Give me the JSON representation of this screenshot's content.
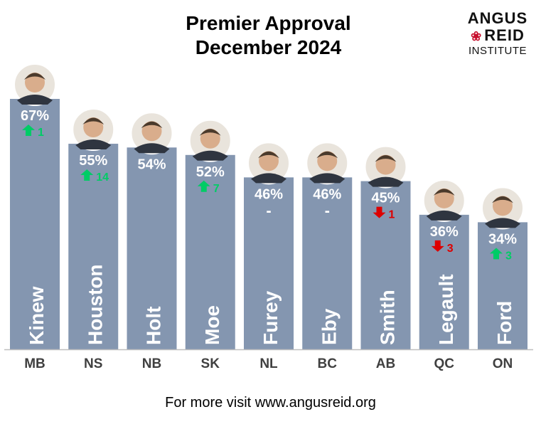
{
  "title": {
    "line1": "Premier Approval",
    "line2": "December 2024"
  },
  "logo": {
    "line1": "ANGUS",
    "line2": "REID",
    "line3": "INSTITUTE"
  },
  "footer": "For more visit www.angusreid.org",
  "colors": {
    "bar": "#8496b0",
    "up": "#00cc66",
    "down": "#dd0000",
    "axis": "#bfbfbf"
  },
  "chart_data": {
    "type": "bar",
    "categories": [
      "MB",
      "NS",
      "NB",
      "SK",
      "NL",
      "BC",
      "AB",
      "QC",
      "ON"
    ],
    "names": [
      "Kinew",
      "Houston",
      "Holt",
      "Moe",
      "Furey",
      "Eby",
      "Smith",
      "Legault",
      "Ford"
    ],
    "values": [
      67,
      55,
      54,
      52,
      46,
      46,
      45,
      36,
      34
    ],
    "value_labels": [
      "67%",
      "55%",
      "54%",
      "52%",
      "46%",
      "46%",
      "45%",
      "36%",
      "34%"
    ],
    "changes": [
      {
        "dir": "up",
        "value": "1"
      },
      {
        "dir": "up",
        "value": "14"
      },
      null,
      {
        "dir": "up",
        "value": "7"
      },
      {
        "dir": "none",
        "value": "-"
      },
      {
        "dir": "none",
        "value": "-"
      },
      {
        "dir": "down",
        "value": "1"
      },
      {
        "dir": "down",
        "value": "3"
      },
      {
        "dir": "up",
        "value": "3"
      }
    ],
    "ylim": [
      0,
      67
    ]
  }
}
